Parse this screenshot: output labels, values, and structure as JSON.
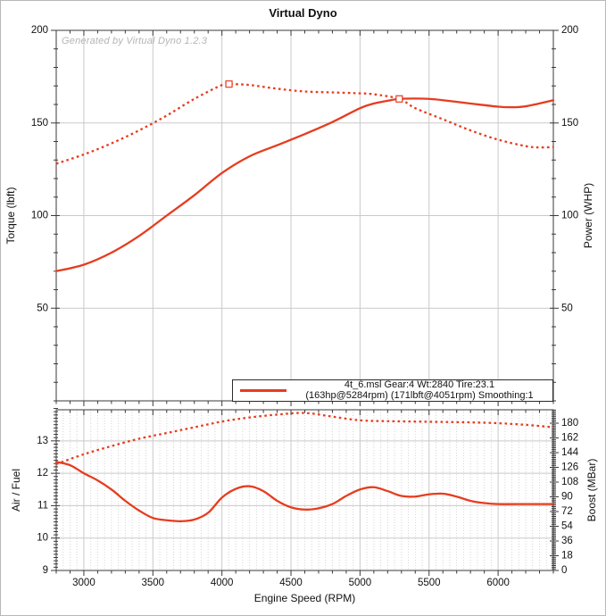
{
  "page": {
    "title": "Virtual Dyno",
    "watermark": "Generated by Virtual Dyno 1.2.3"
  },
  "legend": {
    "line1": "4t_6.msl Gear:4 Wt:2840 Tire:23.1",
    "line2": "(163hp@5284rpm) (171lbft@4051rpm) Smoothing:1",
    "swatch_color": "#e63c1e"
  },
  "colors": {
    "curve": "#e63c1e",
    "grid_major": "#c9c9c9",
    "grid_minor": "#d4d4d4",
    "axis": "#3a3a3a",
    "tick_label": "#111111",
    "watermark": "#b5b5b5"
  },
  "chart_data": [
    {
      "type": "line",
      "name": "torque-power-chart",
      "x_range": [
        2800,
        6400
      ],
      "x_major_ticks": [
        3000,
        3500,
        4000,
        4500,
        5000,
        5500,
        6000
      ],
      "x_minor_step": 100,
      "x_label": "",
      "left_axis": {
        "label": "Torque (lbft)",
        "range": [
          0,
          200
        ],
        "major_ticks": [
          50,
          100,
          150,
          200
        ],
        "minor_step": 10
      },
      "right_axis": {
        "label": "Power (WHP)",
        "range": [
          0,
          200
        ],
        "major_ticks": [
          50,
          100,
          150,
          200
        ],
        "minor_step": 10
      },
      "series": [
        {
          "id": "torque",
          "name": "Torque (lbft)",
          "style": "dotted",
          "axis": "left",
          "x": [
            2800,
            3000,
            3200,
            3400,
            3600,
            3800,
            4000,
            4051,
            4200,
            4400,
            4600,
            4800,
            5000,
            5100,
            5284,
            5400,
            5600,
            5800,
            6000,
            6200,
            6300,
            6400
          ],
          "y": [
            128,
            133,
            139,
            146,
            154,
            163,
            170.5,
            171,
            170.5,
            168.5,
            167,
            166.5,
            166,
            165.5,
            163,
            158,
            152,
            146,
            141,
            137.5,
            136.8,
            137
          ]
        },
        {
          "id": "power",
          "name": "Power (WHP)",
          "style": "solid",
          "axis": "left",
          "x": [
            2800,
            3000,
            3200,
            3400,
            3600,
            3800,
            4000,
            4200,
            4400,
            4600,
            4800,
            5000,
            5100,
            5200,
            5284,
            5400,
            5500,
            5600,
            5800,
            6000,
            6100,
            6200,
            6400
          ],
          "y": [
            70,
            73.5,
            80,
            89,
            100,
            111,
            123,
            132,
            138,
            144,
            150.5,
            158,
            160.5,
            162,
            163,
            163.2,
            163,
            162.3,
            160.5,
            158.8,
            158.5,
            159,
            162.3
          ]
        }
      ],
      "markers": [
        {
          "x": 4051,
          "y": 171,
          "label": "torque-peak 171lbft@4051rpm"
        },
        {
          "x": 5284,
          "y": 163,
          "label": "power-peak 163hp@5284rpm"
        }
      ],
      "peaks": {
        "power": "163hp@5284rpm",
        "torque": "171lbft@4051rpm",
        "smoothing": "1"
      }
    },
    {
      "type": "line",
      "name": "afr-boost-chart",
      "x_range": [
        2800,
        6400
      ],
      "x_major_ticks": [
        3000,
        3500,
        4000,
        4500,
        5000,
        5500,
        6000
      ],
      "x_minor_step": 100,
      "x_label": "Engine Speed (RPM)",
      "grid_minor_x_step": 50,
      "left_axis": {
        "label": "Air / Fuel",
        "range": [
          9,
          13.96
        ],
        "major_ticks": [
          9,
          10,
          11,
          12,
          13
        ],
        "minor_step": 0.1
      },
      "right_axis": {
        "label": "Boost (MBar)",
        "range": [
          0,
          196.4
        ],
        "major_ticks": [
          0,
          18,
          36,
          54,
          72,
          90,
          108,
          126,
          144,
          162,
          180
        ],
        "minor_step": 2
      },
      "series": [
        {
          "id": "boost",
          "name": "Boost (MBar)",
          "style": "dotted",
          "axis": "right",
          "x": [
            2800,
            3000,
            3200,
            3400,
            3600,
            3800,
            4000,
            4200,
            4400,
            4600,
            4800,
            5000,
            5200,
            5400,
            5600,
            5800,
            6000,
            6200,
            6400
          ],
          "y": [
            130,
            142,
            152,
            161,
            168,
            175,
            182,
            187,
            190.5,
            192.5,
            188,
            183.5,
            182.5,
            182,
            181.5,
            181,
            180,
            178,
            175
          ]
        },
        {
          "id": "afr",
          "name": "Air / Fuel",
          "style": "solid",
          "axis": "left",
          "x": [
            2800,
            2900,
            3000,
            3100,
            3200,
            3300,
            3400,
            3500,
            3600,
            3700,
            3800,
            3900,
            4000,
            4100,
            4200,
            4300,
            4400,
            4500,
            4600,
            4700,
            4800,
            4900,
            5000,
            5100,
            5200,
            5300,
            5400,
            5500,
            5600,
            5700,
            5800,
            5900,
            6000,
            6200,
            6400
          ],
          "y": [
            12.35,
            12.25,
            12.0,
            11.78,
            11.5,
            11.15,
            10.85,
            10.62,
            10.55,
            10.52,
            10.57,
            10.78,
            11.25,
            11.52,
            11.6,
            11.45,
            11.15,
            10.95,
            10.88,
            10.92,
            11.05,
            11.3,
            11.5,
            11.57,
            11.45,
            11.3,
            11.28,
            11.35,
            11.37,
            11.28,
            11.15,
            11.08,
            11.05,
            11.05,
            11.05
          ]
        }
      ],
      "markers": []
    }
  ]
}
